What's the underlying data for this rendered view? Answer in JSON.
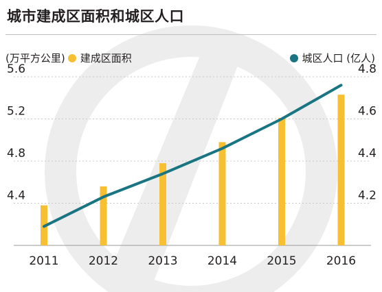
{
  "title": "城市建成区面积和城区人口",
  "colors": {
    "bar": "#f7c033",
    "line": "#1a7582",
    "grid": "#c8c8c8",
    "watermark": "#ededed"
  },
  "legend": {
    "left_unit": "(万平方公里)",
    "bar_label": "建成区面积",
    "line_label": "城区人口 (亿人)"
  },
  "chart_data": {
    "type": "bar+line",
    "categories": [
      "2011",
      "2012",
      "2013",
      "2014",
      "2015",
      "2016"
    ],
    "series": [
      {
        "name": "建成区面积",
        "type": "bar",
        "axis": "left",
        "values": [
          4.38,
          4.56,
          4.78,
          4.98,
          5.21,
          5.43
        ]
      },
      {
        "name": "城区人口",
        "type": "line",
        "axis": "right",
        "values": [
          4.09,
          4.23,
          4.34,
          4.46,
          4.6,
          4.76
        ]
      }
    ],
    "left_axis": {
      "ticks": [
        "5.6",
        "5.2",
        "4.8",
        "4.4"
      ],
      "min": 4.0,
      "max": 5.6
    },
    "right_axis": {
      "ticks": [
        "4.8",
        "4.6",
        "4.4",
        "4.2"
      ],
      "min": 4.0,
      "max": 4.8
    },
    "grid": true,
    "legend": "top"
  }
}
